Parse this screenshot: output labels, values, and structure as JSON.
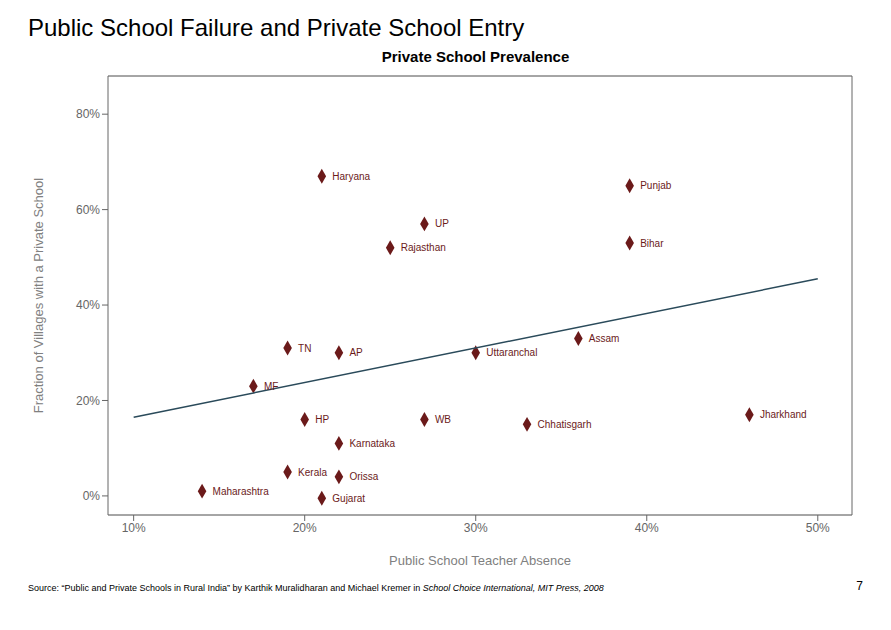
{
  "chart_data": {
    "type": "scatter",
    "title": "Public School Failure and Private School Entry",
    "subtitle": "Private School Prevalence",
    "xlabel": "Public School Teacher Absence",
    "ylabel": "Fraction of Villages with a Private School",
    "series": [
      {
        "type": "scatter",
        "marker": "diamond",
        "color": "#6b1a1a",
        "x": [
          0.21,
          0.39,
          0.27,
          0.25,
          0.39,
          0.19,
          0.22,
          0.17,
          0.36,
          0.3,
          0.2,
          0.27,
          0.33,
          0.46,
          0.22,
          0.19,
          0.22,
          0.14,
          0.21
        ],
        "values": [
          0.67,
          0.65,
          0.57,
          0.52,
          0.53,
          0.31,
          0.3,
          0.23,
          0.33,
          0.3,
          0.16,
          0.16,
          0.15,
          0.17,
          0.11,
          0.05,
          0.04,
          0.01,
          -0.005
        ],
        "labels": [
          "Haryana",
          "Punjab",
          "UP",
          "Rajasthan",
          "Bihar",
          "TN",
          "AP",
          "MF",
          "Assam",
          "Uttaranchal",
          "HP",
          "WB",
          "Chhatisgarh",
          "Jharkhand",
          "Karnataka",
          "Kerala",
          "Orissa",
          "Maharashtra",
          "Gujarat"
        ]
      },
      {
        "type": "line",
        "line_style": "solid",
        "color": "#2a4a5a",
        "x": [
          0.1,
          0.5
        ],
        "values": [
          0.165,
          0.455
        ]
      }
    ],
    "xlim": [
      0.085,
      0.52
    ],
    "ylim": [
      -0.04,
      0.88
    ],
    "xticks": [
      {
        "value": 0.1,
        "label": "10%"
      },
      {
        "value": 0.2,
        "label": "20%"
      },
      {
        "value": 0.3,
        "label": "30%"
      },
      {
        "value": 0.4,
        "label": "40%"
      },
      {
        "value": 0.5,
        "label": "50%"
      }
    ],
    "yticks": [
      {
        "value": 0.0,
        "label": "0%"
      },
      {
        "value": 0.2,
        "label": "20%"
      },
      {
        "value": 0.4,
        "label": "40%"
      },
      {
        "value": 0.6,
        "label": "60%"
      },
      {
        "value": 0.8,
        "label": "80%"
      }
    ],
    "grid": true,
    "source": [
      {
        "text": "Source: “Public and Private Schools in Rural India” by Karthik Muralidharan and Michael Kremer in ",
        "italic": false
      },
      {
        "text": "School Choice International, MIT Press, 2008",
        "italic": true
      }
    ],
    "page_number": "7"
  }
}
